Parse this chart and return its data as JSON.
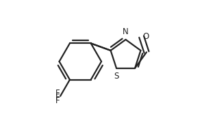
{
  "bg_color": "#ffffff",
  "line_color": "#222222",
  "line_width": 1.6,
  "font_size": 8.5,
  "figsize": [
    3.14,
    1.8
  ],
  "dpi": 100,
  "xlim": [
    0.0,
    1.05
  ],
  "ylim": [
    0.05,
    0.95
  ]
}
